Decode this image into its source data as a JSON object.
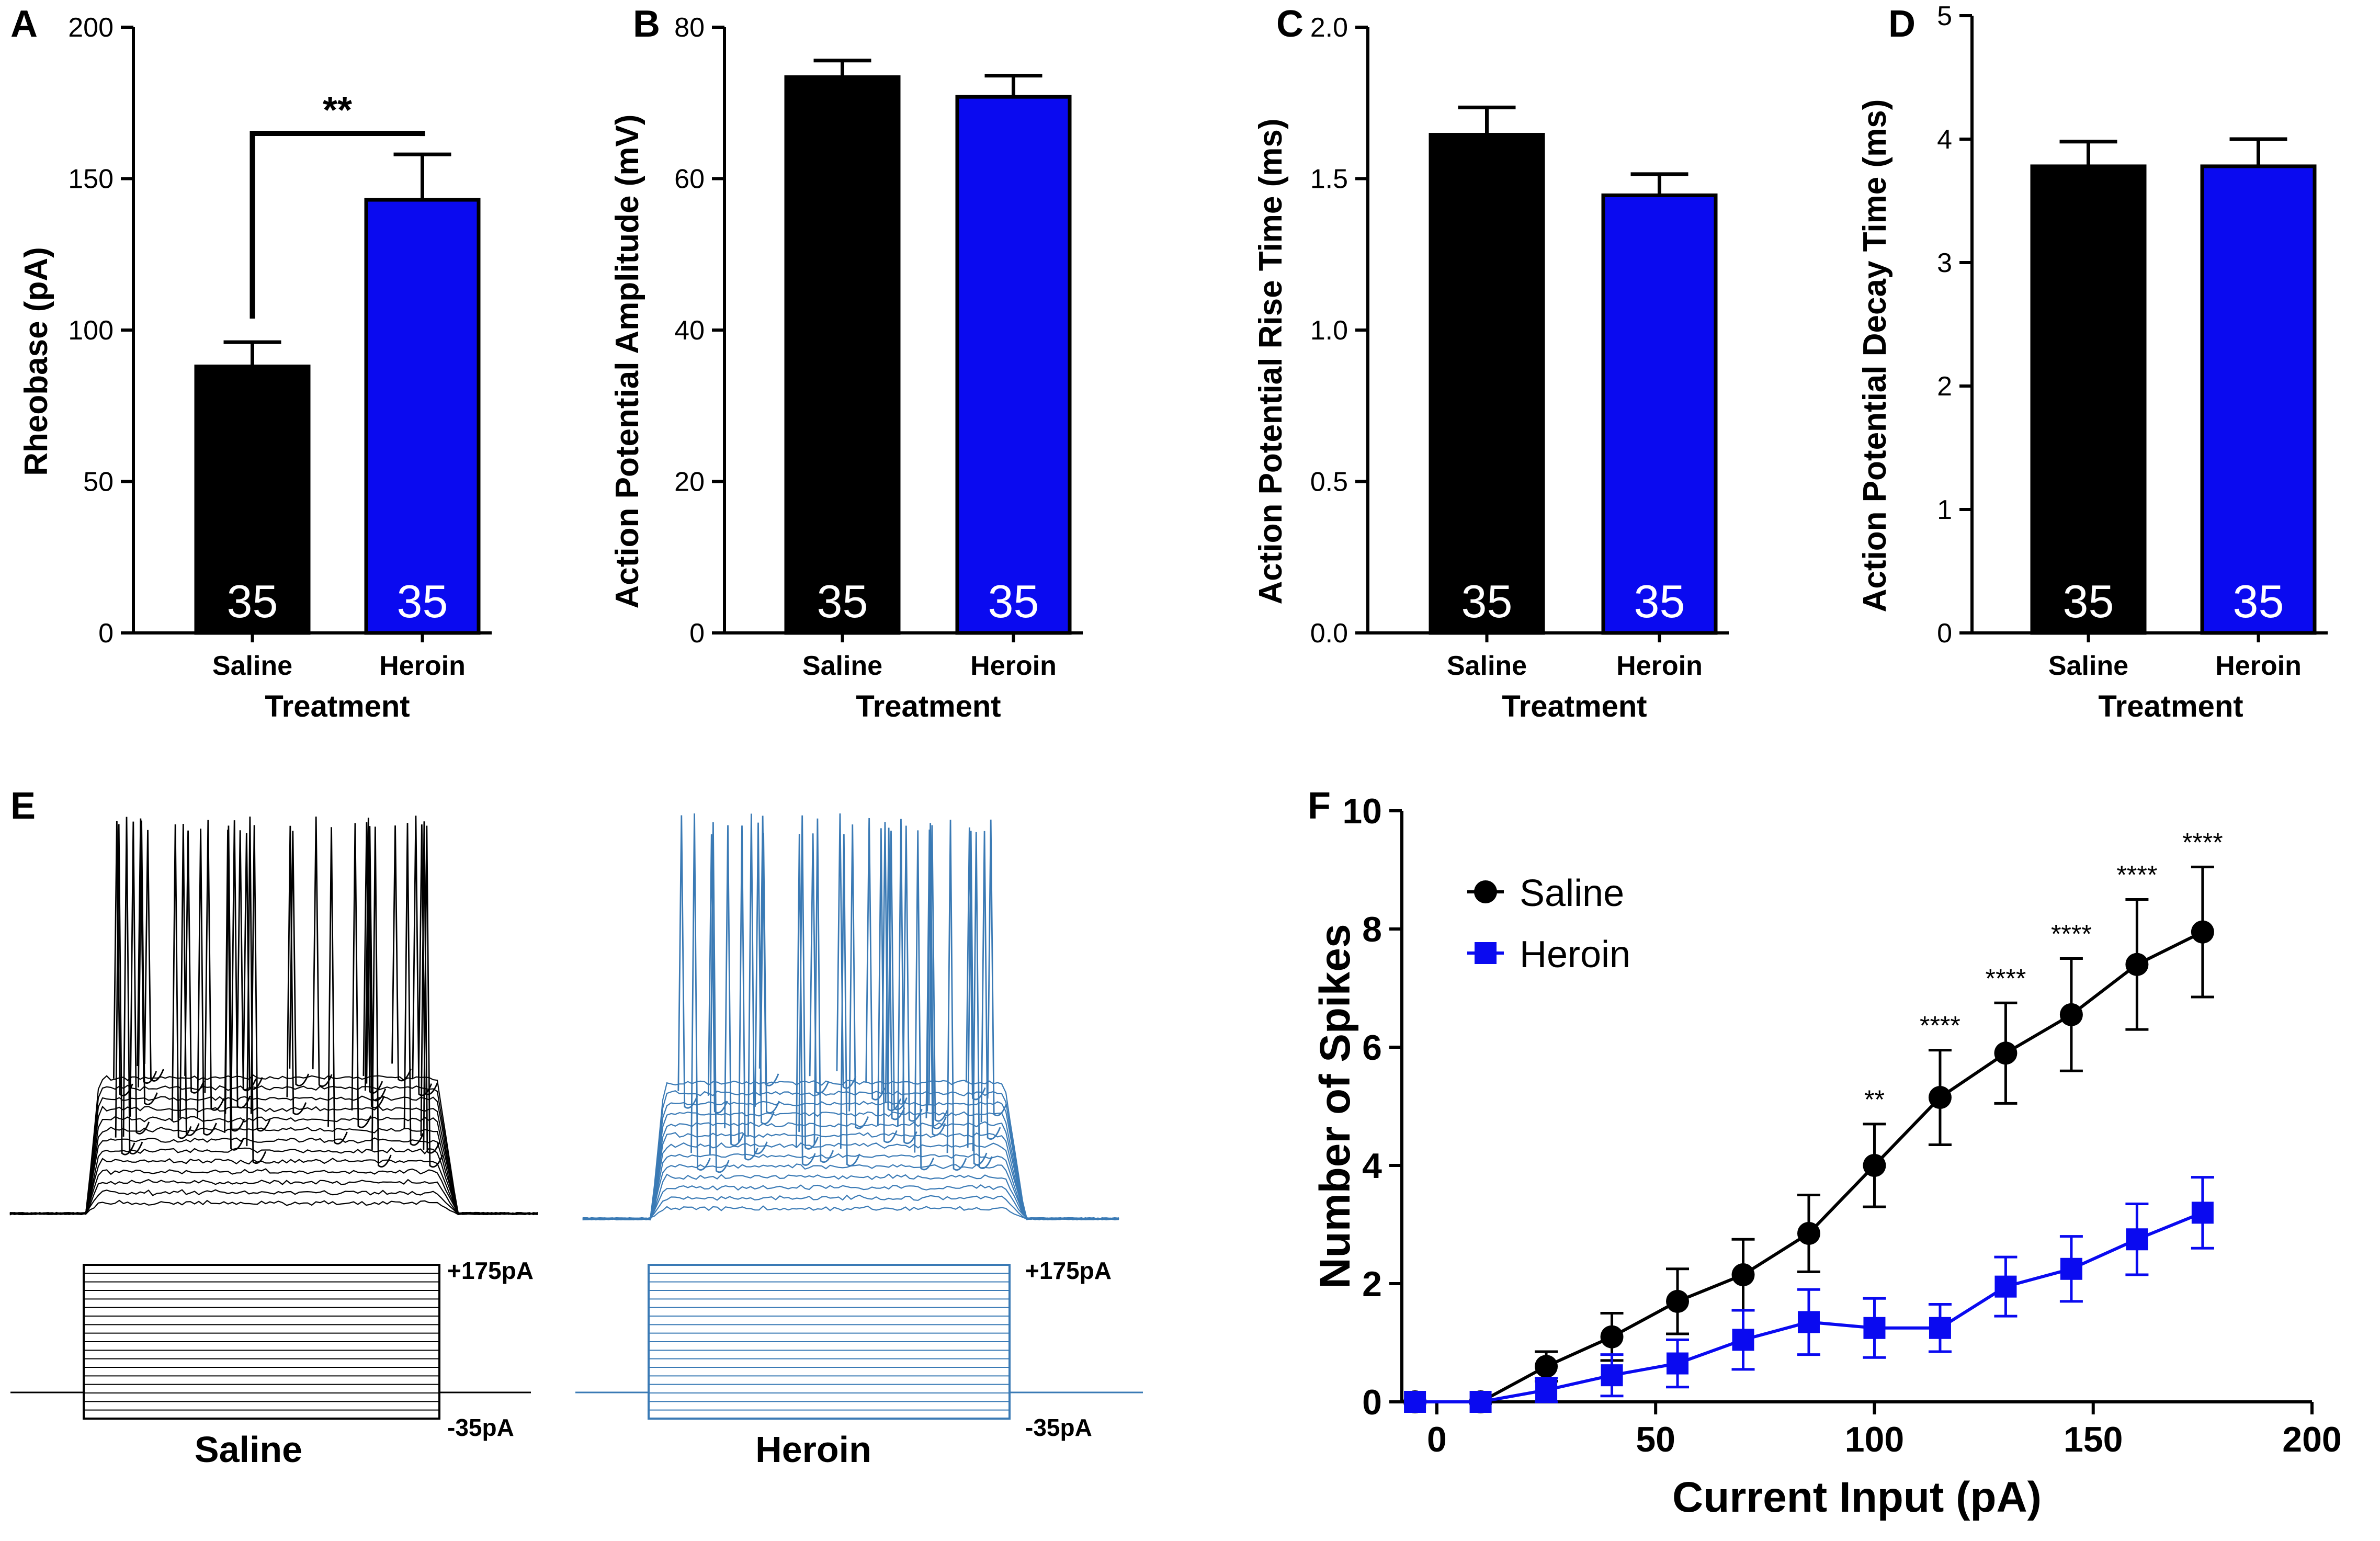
{
  "colors": {
    "saline": "#000000",
    "heroin": "#0A0AF0",
    "trace_heroin": "#3A7AB5"
  },
  "chart_data": [
    {
      "panel": "A",
      "type": "bar",
      "ylabel": "Rheobase (pA)",
      "xlabel": "Treatment",
      "ylim": [
        0,
        200
      ],
      "yticks": [
        "0",
        "50",
        "100",
        "150",
        "200"
      ],
      "categories": [
        "Saline",
        "Heroin"
      ],
      "values": [
        88,
        143
      ],
      "errors": [
        8,
        15
      ],
      "n_labels": [
        "35",
        "35"
      ],
      "significance": "**"
    },
    {
      "panel": "B",
      "type": "bar",
      "ylabel": "Action  Potential Amplitude  (mV)",
      "xlabel": "Treatment",
      "ylim": [
        0,
        80
      ],
      "yticks": [
        "0",
        "20",
        "40",
        "60",
        "80"
      ],
      "categories": [
        "Saline",
        "Heroin"
      ],
      "values": [
        73.4,
        70.8
      ],
      "errors": [
        2.2,
        2.8
      ],
      "n_labels": [
        "35",
        "35"
      ]
    },
    {
      "panel": "C",
      "type": "bar",
      "ylabel": "Action  Potential Rise  Time (ms)",
      "xlabel": "Treatment",
      "ylim": [
        0,
        2
      ],
      "yticks": [
        "0.0",
        "0.5",
        "1.0",
        "1.5",
        "2.0"
      ],
      "categories": [
        "Saline",
        "Heroin"
      ],
      "values": [
        1.645,
        1.445
      ],
      "errors": [
        0.09,
        0.07
      ],
      "n_labels": [
        "35",
        "35"
      ]
    },
    {
      "panel": "D",
      "type": "bar",
      "ylabel": "Action  Potential Decay Time (ms)",
      "xlabel": "Treatment",
      "ylim": [
        0,
        5
      ],
      "yticks": [
        "0",
        "1",
        "2",
        "3",
        "4",
        "5"
      ],
      "categories": [
        "Saline",
        "Heroin"
      ],
      "values": [
        3.78,
        3.78
      ],
      "errors": [
        0.2,
        0.22
      ],
      "n_labels": [
        "35",
        "35"
      ]
    },
    {
      "panel": "F",
      "type": "line",
      "xlabel": "Current Input (pA)",
      "ylabel": "Number of  Spikes",
      "xlim": [
        -8,
        200
      ],
      "ylim": [
        0,
        10
      ],
      "xticks": [
        "0",
        "50",
        "100",
        "150",
        "200"
      ],
      "yticks": [
        "0",
        "2",
        "4",
        "6",
        "8",
        "10"
      ],
      "x": [
        -5,
        10,
        25,
        40,
        55,
        70,
        85,
        100,
        115,
        130,
        145,
        160,
        175
      ],
      "series": [
        {
          "name": "Saline",
          "values": [
            0,
            0,
            0.6,
            1.1,
            1.7,
            2.15,
            2.85,
            4.0,
            5.15,
            5.9,
            6.55,
            7.4,
            7.95
          ],
          "errors": [
            0,
            0,
            0.25,
            0.4,
            0.55,
            0.6,
            0.65,
            0.7,
            0.8,
            0.85,
            0.95,
            1.1,
            1.1
          ]
        },
        {
          "name": "Heroin",
          "values": [
            0,
            0,
            0.2,
            0.45,
            0.65,
            1.05,
            1.35,
            1.25,
            1.25,
            1.95,
            2.25,
            2.75,
            3.2
          ],
          "errors": [
            0,
            0,
            0.2,
            0.35,
            0.4,
            0.5,
            0.55,
            0.5,
            0.4,
            0.5,
            0.55,
            0.6,
            0.6
          ]
        }
      ],
      "significance": [
        {
          "x": 100,
          "label": "**"
        },
        {
          "x": 115,
          "label": "****"
        },
        {
          "x": 130,
          "label": "****"
        },
        {
          "x": 145,
          "label": "****"
        },
        {
          "x": 160,
          "label": "****"
        },
        {
          "x": 175,
          "label": "****"
        }
      ]
    }
  ],
  "traces": {
    "panel": "E",
    "saline_label": "Saline",
    "heroin_label": "Heroin",
    "top_current": "+175pA",
    "bottom_current": "-35pA"
  }
}
